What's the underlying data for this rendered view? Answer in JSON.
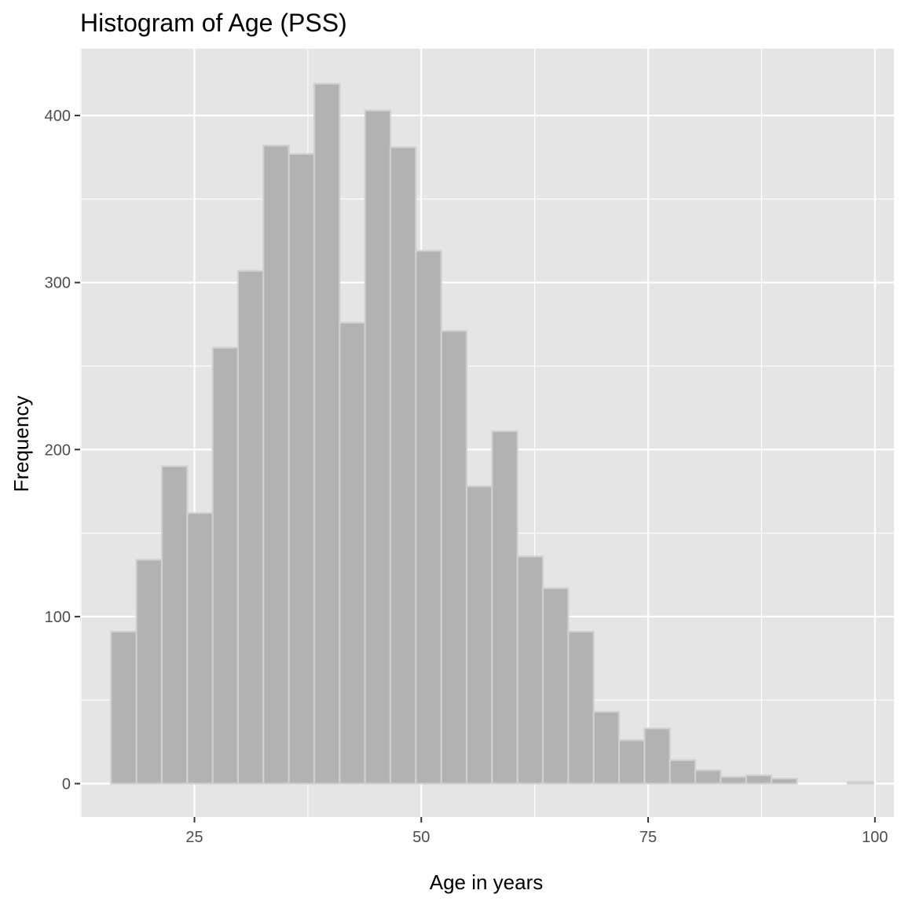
{
  "chart_data": {
    "type": "histogram",
    "title": "Histogram of Age (PSS)",
    "xlabel": "Age in years",
    "ylabel": "Frequency",
    "xlim": [
      12.4,
      102.1
    ],
    "ylim": [
      -20,
      440
    ],
    "x_ticks": [
      25,
      50,
      75,
      100
    ],
    "y_ticks": [
      0,
      100,
      200,
      300,
      400
    ],
    "bin_width": 2.8,
    "bin_start": 15.8,
    "values": [
      91,
      134,
      190,
      162,
      261,
      307,
      382,
      377,
      419,
      276,
      403,
      381,
      319,
      271,
      178,
      211,
      136,
      117,
      91,
      43,
      26,
      33,
      14,
      8,
      4,
      5,
      3,
      0,
      0,
      1
    ],
    "grid": true,
    "legend": "none",
    "colors": {
      "panel_background": "#e5e5e5",
      "grid_line": "#ffffff",
      "bar_fill": "#b2b2b2",
      "bar_outline": "#d0d0d0",
      "tick_label": "#4d4d4d",
      "text": "#000000"
    }
  }
}
